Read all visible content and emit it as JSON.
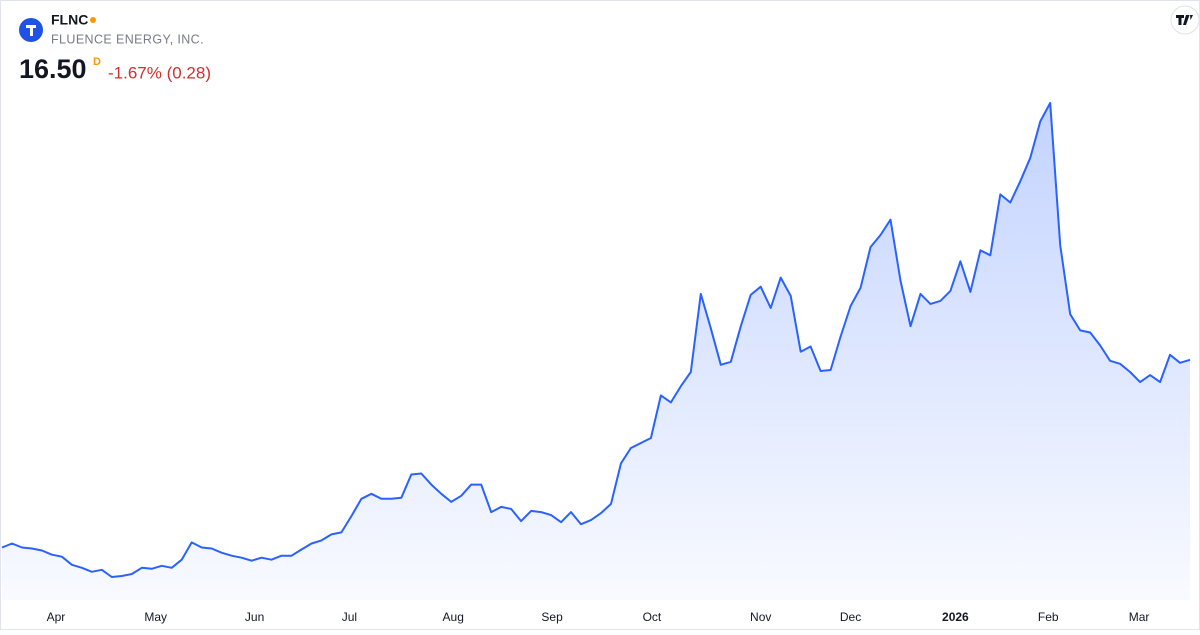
{
  "header": {
    "symbol": "FLNC",
    "company": "FLUENCE ENERGY, INC.",
    "price": "16.50",
    "interval": "D",
    "change": "-1.67% (0.28)"
  },
  "chart_data": {
    "type": "area",
    "color": "#2962ff",
    "values": [
      5.31,
      5.55,
      5.31,
      5.25,
      5.13,
      4.88,
      4.76,
      4.28,
      4.1,
      3.86,
      3.98,
      3.55,
      3.61,
      3.73,
      4.1,
      4.04,
      4.22,
      4.1,
      4.58,
      5.61,
      5.31,
      5.25,
      5.0,
      4.82,
      4.7,
      4.52,
      4.7,
      4.58,
      4.82,
      4.82,
      5.19,
      5.55,
      5.73,
      6.09,
      6.21,
      7.18,
      8.21,
      8.51,
      8.21,
      8.21,
      8.27,
      9.66,
      9.72,
      9.06,
      8.51,
      8.03,
      8.39,
      9.06,
      9.06,
      7.42,
      7.73,
      7.61,
      6.88,
      7.49,
      7.42,
      7.24,
      6.82,
      7.42,
      6.7,
      6.94,
      7.36,
      7.91,
      10.33,
      11.24,
      11.54,
      11.84,
      14.38,
      13.96,
      14.93,
      15.77,
      20.43,
      18.38,
      16.2,
      16.38,
      18.5,
      20.37,
      20.86,
      19.59,
      21.4,
      20.31,
      16.98,
      17.29,
      15.83,
      15.89,
      17.89,
      19.71,
      20.8,
      23.22,
      23.94,
      24.85,
      21.22,
      18.5,
      20.43,
      19.83,
      20.01,
      20.61,
      22.37,
      20.55,
      23.03,
      22.73,
      26.36,
      25.88,
      27.15,
      28.54,
      30.72,
      31.81,
      23.34,
      19.22,
      18.25,
      18.13,
      17.35,
      16.44,
      16.26,
      15.77,
      15.17,
      15.59,
      15.17,
      16.8,
      16.32,
      16.5
    ],
    "xticks": [
      {
        "value": 5.4,
        "label": "Apr"
      },
      {
        "value": 15.4,
        "label": "May"
      },
      {
        "value": 25.3,
        "label": "Jun"
      },
      {
        "value": 34.8,
        "label": "Jul"
      },
      {
        "value": 45.2,
        "label": "Aug"
      },
      {
        "value": 55.1,
        "label": "Sep"
      },
      {
        "value": 65.1,
        "label": "Oct"
      },
      {
        "value": 76,
        "label": "Nov"
      },
      {
        "value": 85,
        "label": "Dec"
      },
      {
        "value": 95.5,
        "label": "2026"
      },
      {
        "value": 104.8,
        "label": "Feb"
      },
      {
        "value": 113.9,
        "label": "Mar"
      }
    ]
  }
}
